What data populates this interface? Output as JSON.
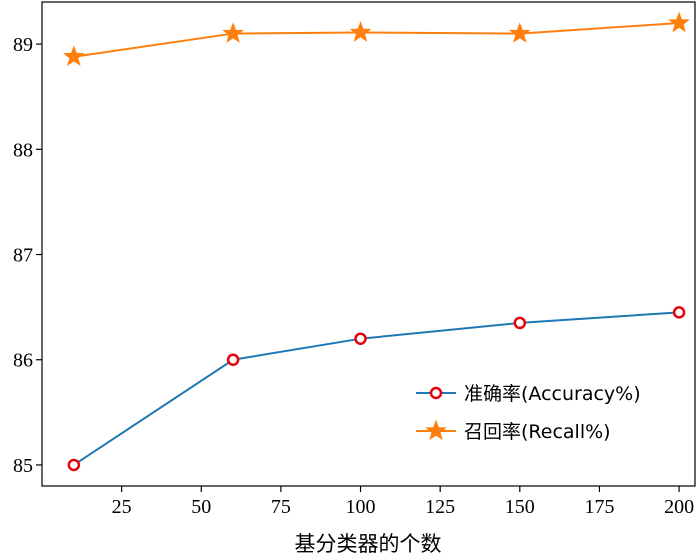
{
  "chart_data": {
    "type": "line",
    "xlabel": "基分类器的个数",
    "ylabel": "",
    "xlim": [
      0,
      205
    ],
    "ylim": [
      84.8,
      89.4
    ],
    "x_ticks": [
      25,
      50,
      75,
      100,
      125,
      150,
      175,
      200
    ],
    "y_ticks": [
      85,
      86,
      87,
      88,
      89
    ],
    "legend_position": "lower-right",
    "grid": false,
    "series": [
      {
        "name": "准确率(Accuracy%)",
        "color": "#1f77b4",
        "marker": "open-circle",
        "marker_color": "#e8000b",
        "x": [
          10,
          60,
          100,
          150,
          200
        ],
        "y": [
          85.0,
          86.0,
          86.2,
          86.35,
          86.45
        ]
      },
      {
        "name": "召回率(Recall%)",
        "color": "#ff7f0e",
        "marker": "star",
        "marker_color": "#ff7f0e",
        "x": [
          10,
          60,
          100,
          150,
          200
        ],
        "y": [
          88.88,
          89.1,
          89.11,
          89.1,
          89.2
        ]
      }
    ]
  }
}
